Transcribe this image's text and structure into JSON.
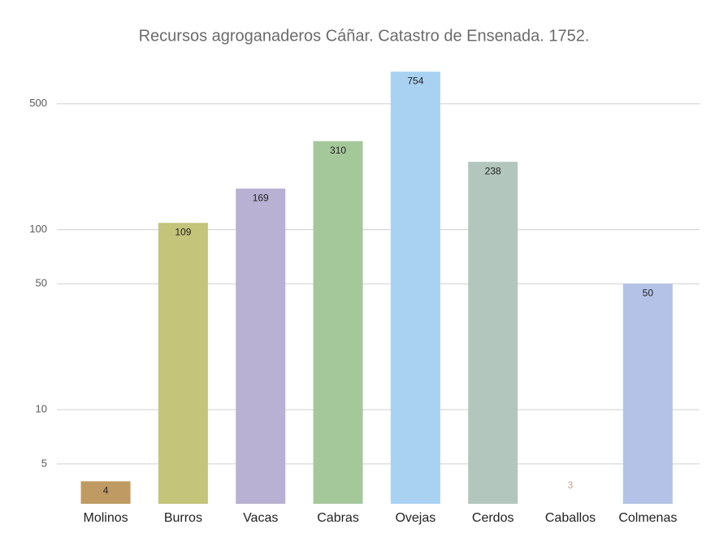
{
  "chart_data": {
    "type": "bar",
    "title": "Recursos agroganaderos Cáñar. Catastro de Ensenada. 1752.",
    "categories": [
      "Molinos",
      "Burros",
      "Vacas",
      "Cabras",
      "Ovejas",
      "Cerdos",
      "Caballos",
      "Colmenas"
    ],
    "values": [
      4,
      109,
      169,
      310,
      754,
      238,
      3,
      50
    ],
    "colors": [
      "#bf9b63",
      "#c4c47a",
      "#b9b1d3",
      "#a5c89b",
      "#a9d2f2",
      "#b3c6bd",
      "#c8a38a",
      "#b3c2e6"
    ],
    "ylim": [
      3,
      1000
    ],
    "yticks": [
      5,
      10,
      50,
      100,
      500
    ],
    "log_scale": true,
    "grid": true
  }
}
